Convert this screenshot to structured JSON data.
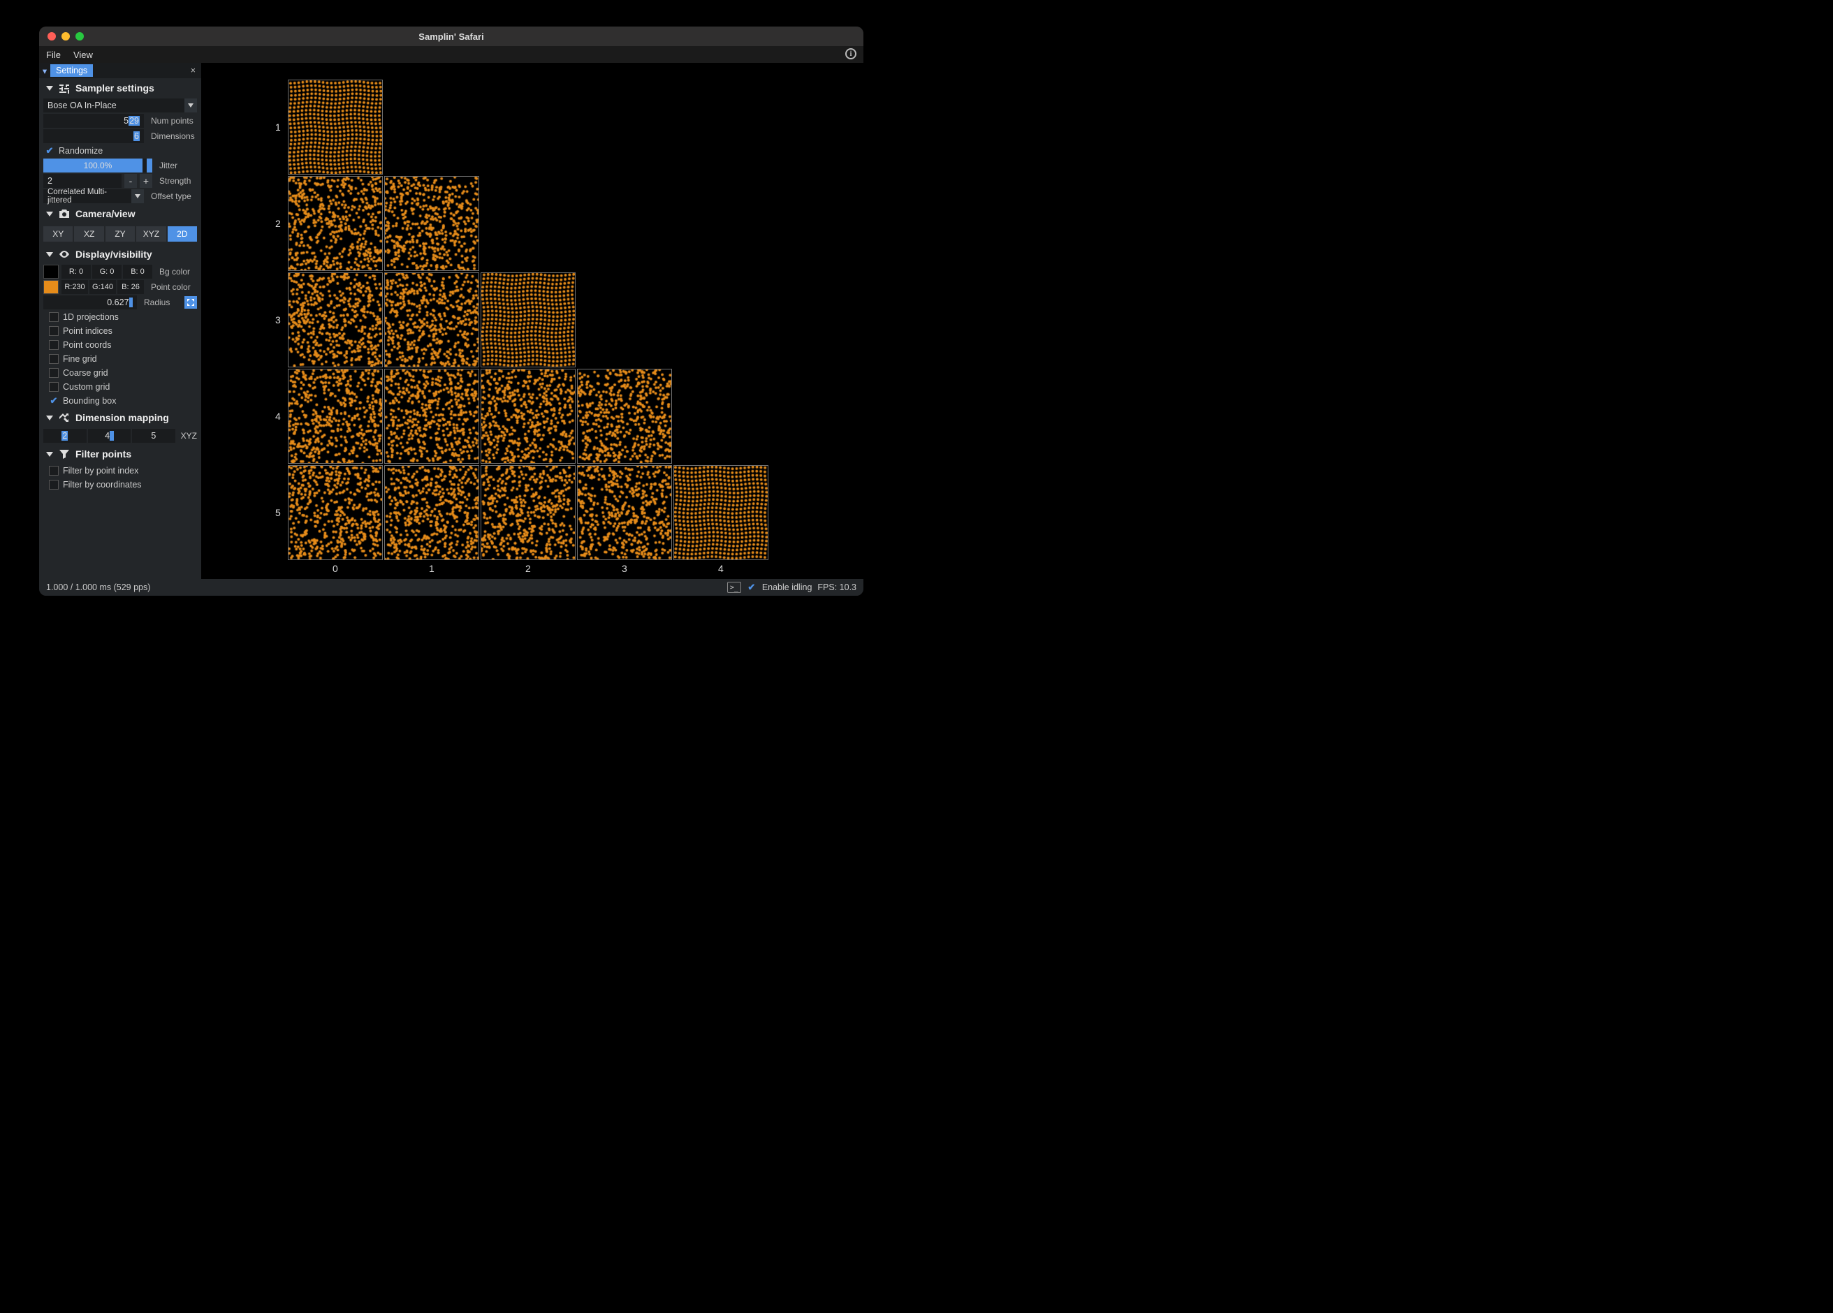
{
  "window": {
    "title": "Samplin' Safari"
  },
  "menu": {
    "file": "File",
    "view": "View"
  },
  "tab": {
    "label": "Settings"
  },
  "sampler": {
    "header": "Sampler settings",
    "method": "Bose OA In-Place",
    "num_points": "529",
    "num_points_hl": "29",
    "num_points_pre": "5",
    "num_points_label": "Num points",
    "dimensions": "6",
    "dimensions_label": "Dimensions",
    "randomize_label": "Randomize",
    "randomize_on": true,
    "jitter_pct": "100.0%",
    "jitter_fill": 100,
    "jitter_label": "Jitter",
    "strength": "2",
    "strength_label": "Strength",
    "offset_type": "Correlated Multi-jittered",
    "offset_label": "Offset type"
  },
  "camera": {
    "header": "Camera/view",
    "buttons": [
      "XY",
      "XZ",
      "ZY",
      "XYZ",
      "2D"
    ],
    "active": "2D"
  },
  "display": {
    "header": "Display/visibility",
    "bg_label": "Bg color",
    "bg_r": "R:   0",
    "bg_g": "G:   0",
    "bg_b": "B:   0",
    "bg_hex": "#000000",
    "pt_label": "Point color",
    "pt_r": "R:230",
    "pt_g": "G:140",
    "pt_b": "B: 26",
    "pt_hex": "#e68c1a",
    "radius": "0.627",
    "radius_label": "Radius",
    "opts": [
      {
        "label": "1D projections",
        "on": false
      },
      {
        "label": "Point indices",
        "on": false
      },
      {
        "label": "Point coords",
        "on": false
      },
      {
        "label": "Fine grid",
        "on": false
      },
      {
        "label": "Coarse grid",
        "on": false
      },
      {
        "label": "Custom grid",
        "on": false
      },
      {
        "label": "Bounding box",
        "on": true
      }
    ]
  },
  "dimmap": {
    "header": "Dimension mapping",
    "x": "2",
    "y": "4",
    "z": "5",
    "label": "XYZ"
  },
  "filter": {
    "header": "Filter points",
    "opts": [
      {
        "label": "Filter by point index",
        "on": false
      },
      {
        "label": "Filter by coordinates",
        "on": false
      }
    ]
  },
  "status": {
    "left": "1.000 / 1.000 ms (529 pps)",
    "idle_label": "Enable idling",
    "fps": "FPS: 10.3"
  },
  "plot": {
    "cell_size": 136,
    "gap": 2,
    "point_color": "#e68c1a",
    "border_color": "#707070",
    "n_points": 529,
    "point_radius": 2.0,
    "rows": [
      1,
      2,
      3,
      4,
      5
    ],
    "cols": [
      0,
      1,
      2,
      3,
      4
    ],
    "structured_cells": [
      "0-0",
      "2-2",
      "4-4"
    ]
  }
}
